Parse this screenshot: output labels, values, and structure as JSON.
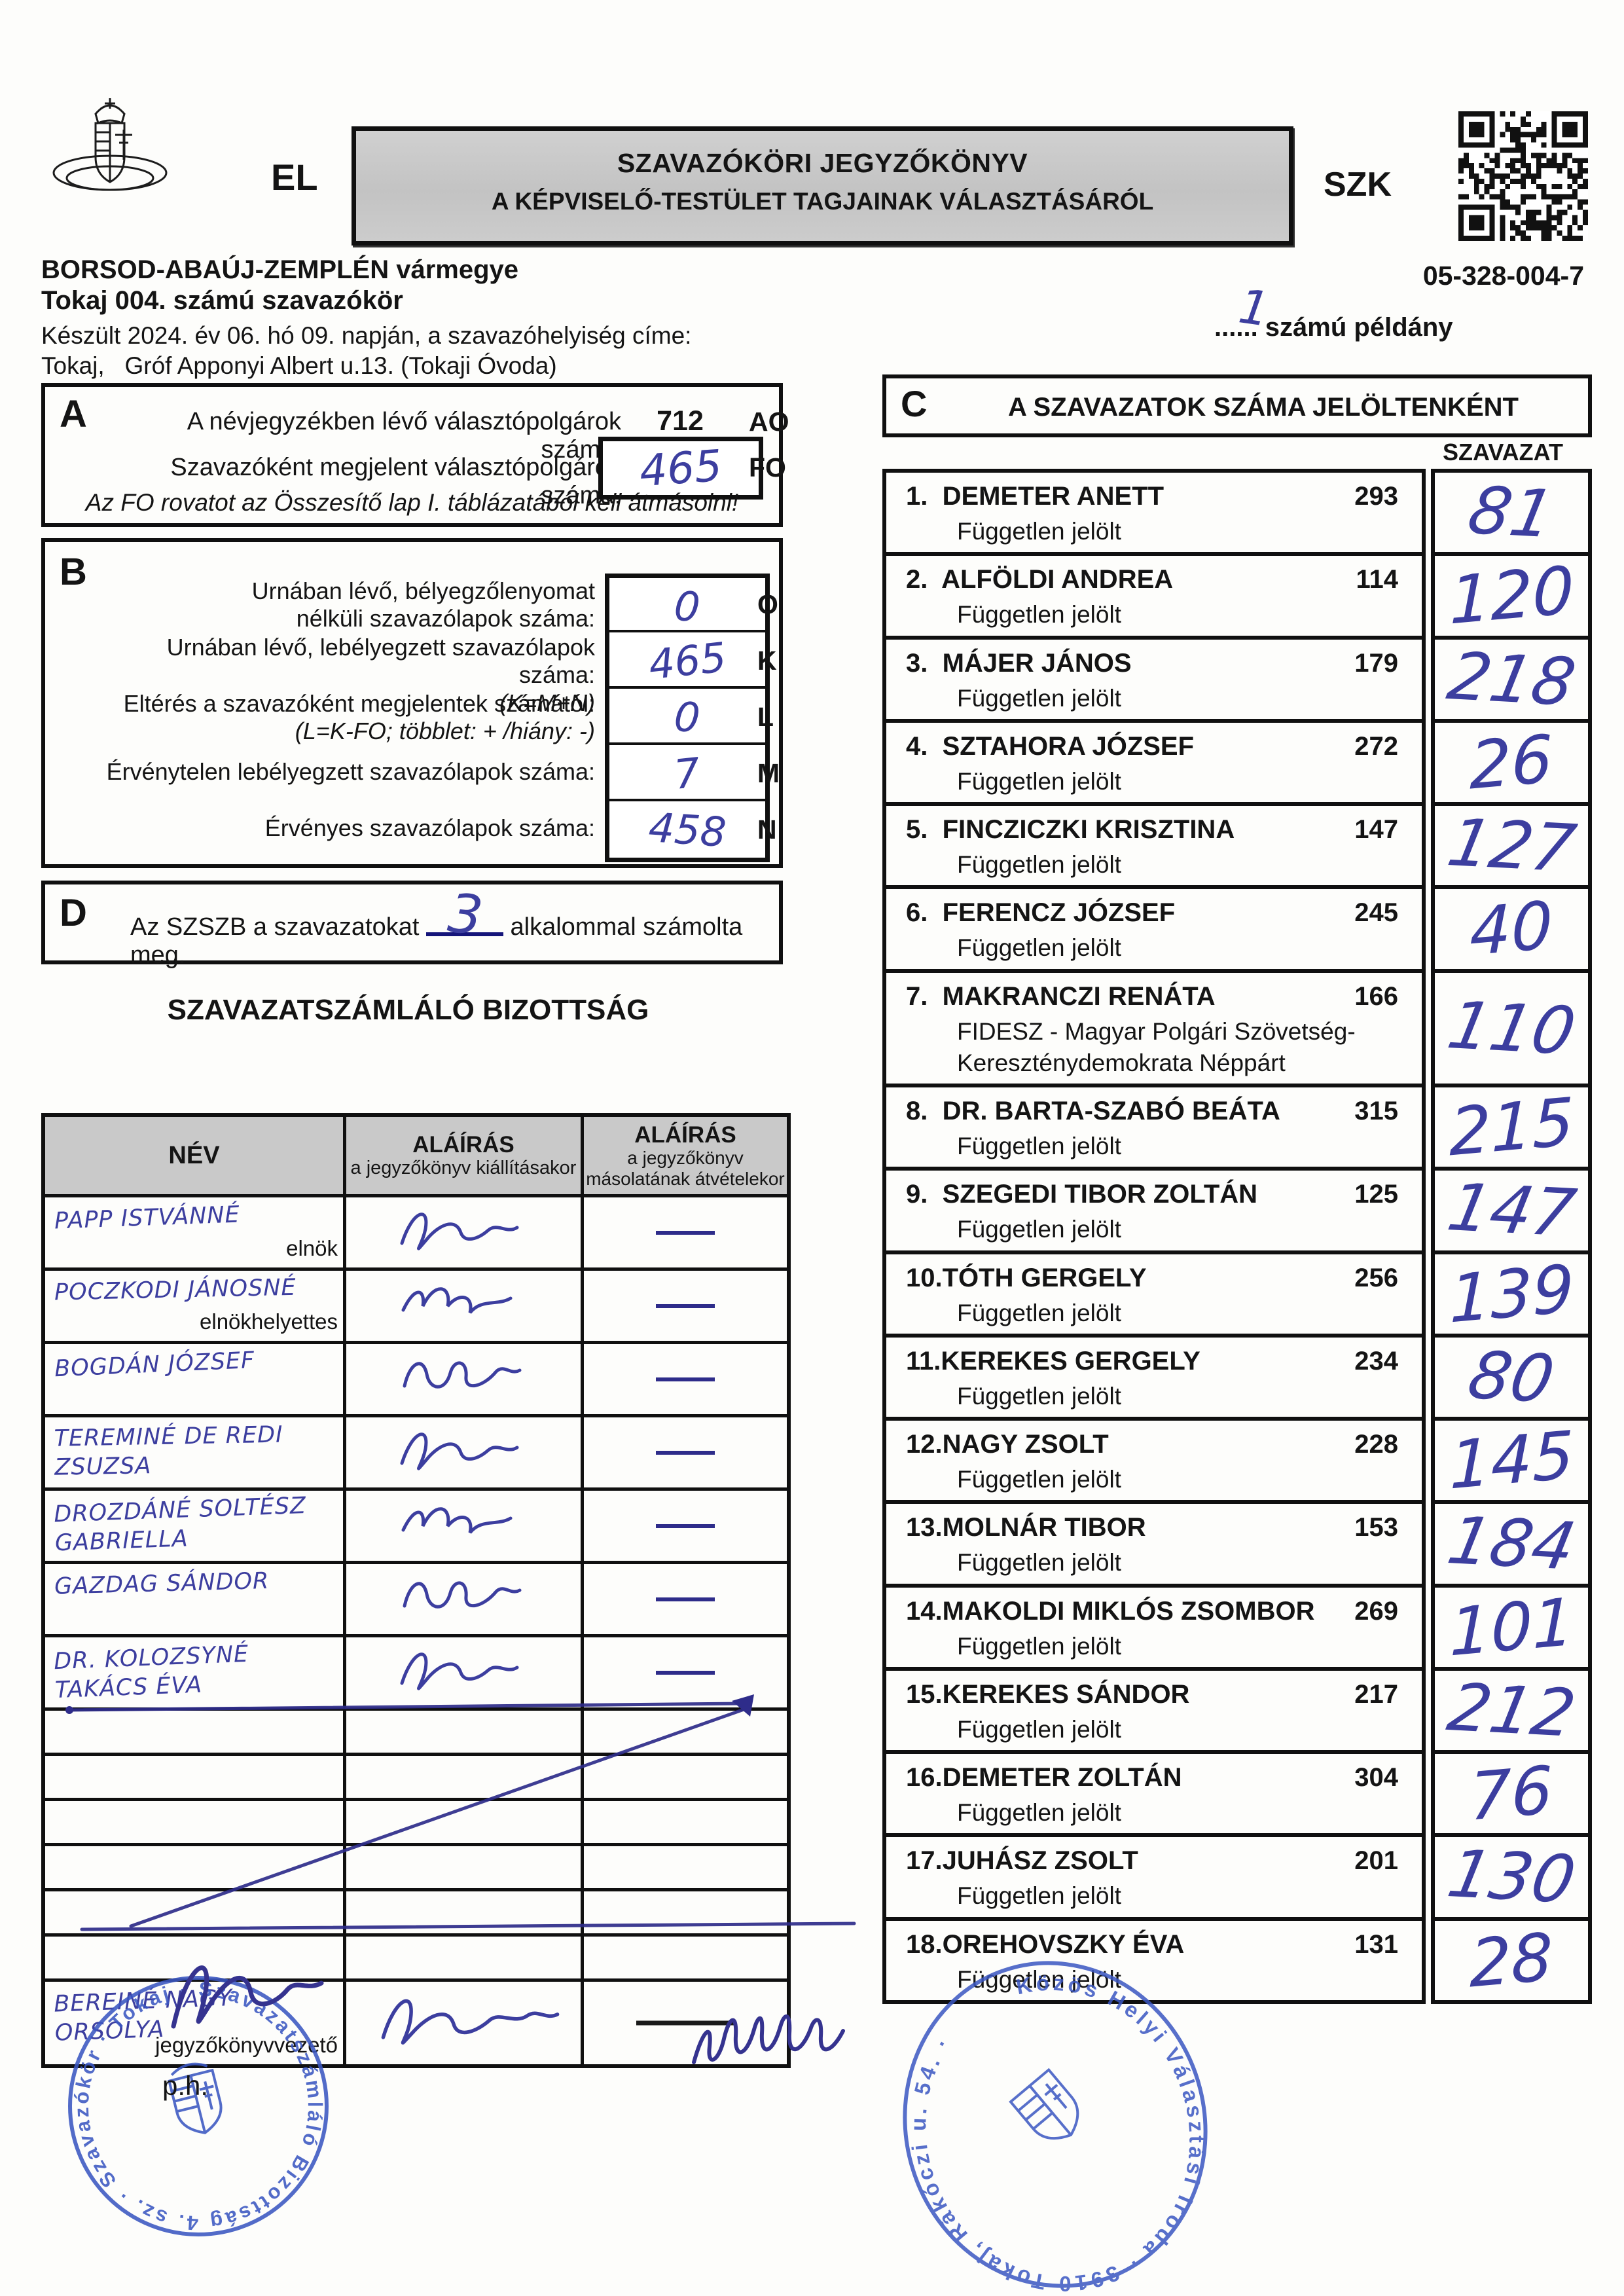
{
  "document": {
    "el_code": "EL",
    "title_line1": "SZAVAZÓKÖRI JEGYZŐKÖNYV",
    "title_line2": "A KÉPVISELŐ-TESTÜLET TAGJAINAK VÁLASZTÁSÁRÓL",
    "szk_code": "SZK",
    "qr_icon": "qr-code-icon",
    "arms_icon": "hungarian-coat-of-arms-icon",
    "county": "BORSOD-ABAÚJ-ZEMPLÉN vármegye",
    "precinct": "Tokaj 004. számú szavazókör",
    "precinct_code": "05-328-004-7",
    "created_line": "Készült 2024. év 06. hó 09. napján, a szavazóhelyiség címe:",
    "address_line": "Tokaj,   Gróf Apponyi Albert u.13. (Tokaji Óvoda)",
    "copy_number_hw": "1",
    "copy_suffix": "...... számú példány"
  },
  "section_a": {
    "letter": "A",
    "row1_label": "A névjegyzékben lévő választópolgárok száma:",
    "row1_value": "712",
    "row1_code": "AO",
    "row2_label": "Szavazóként megjelent választópolgárok száma:",
    "row2_value_hw": "465",
    "row2_code": "FO",
    "note": "Az FO rovatot az Összesítő lap I. táblázatából kell átmásolni!"
  },
  "section_b": {
    "letter": "B",
    "rows": [
      {
        "label": "Urnában lévő, bélyegzőlenyomat",
        "label2": "nélküli szavazólapok száma:",
        "sub": "",
        "code": "O",
        "value_hw": "0"
      },
      {
        "label": "Urnában lévő, lebélyegzett szavazólapok száma:",
        "label2": "",
        "sub": "(K=M+N)",
        "code": "K",
        "value_hw": "465"
      },
      {
        "label": "Eltérés a szavazóként megjelentek számától:",
        "label2": "",
        "sub": "(L=K-FO; többlet: + /hiány: -)",
        "code": "L",
        "value_hw": "0"
      },
      {
        "label": "Érvénytelen lebélyegzett szavazólapok száma:",
        "label2": "",
        "sub": "",
        "code": "M",
        "value_hw": "7"
      },
      {
        "label": "Érvényes szavazólapok száma:",
        "label2": "",
        "sub": "",
        "code": "N",
        "value_hw": "458"
      }
    ]
  },
  "section_d": {
    "letter": "D",
    "text_start": "Az SZSZB a szavazatokat",
    "count_hw": "3",
    "text_end": "alkalommal számolta meg."
  },
  "committee": {
    "title": "SZAVAZATSZÁMLÁLÓ BIZOTTSÁG",
    "header": {
      "col_name": "NÉV",
      "col_sign1a": "ALÁÍRÁS",
      "col_sign1b": "a jegyzőkönyv kiállításakor",
      "col_sign2a": "ALÁÍRÁS",
      "col_sign2b": "a jegyzőkönyv",
      "col_sign2c": "másolatának átvételekor"
    },
    "members": [
      {
        "name_hw": "PAPP ISTVÁNNÉ",
        "role": "elnök"
      },
      {
        "name_hw": "POCZKODI JÁNOSNÉ",
        "role": "elnökhelyettes"
      },
      {
        "name_hw": "BOGDÁN JÓZSEF",
        "role": ""
      },
      {
        "name_hw": "TEREMINÉ DE REDI ZSUZSA",
        "role": ""
      },
      {
        "name_hw": "DROZDÁNÉ SOLTÉSZ GABRIELLA",
        "role": ""
      },
      {
        "name_hw": "GAZDAG SÁNDOR",
        "role": ""
      },
      {
        "name_hw": "DR. KOLOZSYNÉ TAKÁCS ÉVA",
        "role": ""
      }
    ],
    "recorder": {
      "name_hw": "BEREINÉ NAGY ORSOLYA",
      "role": "jegyzőkönyvvezető"
    }
  },
  "section_c": {
    "letter": "C",
    "title": "A SZAVAZATOK SZÁMA JELÖLTENKÉNT",
    "votes_col": "SZAVAZAT",
    "candidates": [
      {
        "num_name": "1.  DEMETER ANETT",
        "registered": "293",
        "party": "Független jelölt",
        "party2": "",
        "votes_hw": "81"
      },
      {
        "num_name": "2.  ALFÖLDI ANDREA",
        "registered": "114",
        "party": "Független jelölt",
        "party2": "",
        "votes_hw": "120"
      },
      {
        "num_name": "3.  MÁJER JÁNOS",
        "registered": "179",
        "party": "Független jelölt",
        "party2": "",
        "votes_hw": "218"
      },
      {
        "num_name": "4.  SZTAHORA JÓZSEF",
        "registered": "272",
        "party": "Független jelölt",
        "party2": "",
        "votes_hw": "26"
      },
      {
        "num_name": "5.  FINCZICZKI KRISZTINA",
        "registered": "147",
        "party": "Független jelölt",
        "party2": "",
        "votes_hw": "127"
      },
      {
        "num_name": "6.  FERENCZ JÓZSEF",
        "registered": "245",
        "party": "Független jelölt",
        "party2": "",
        "votes_hw": "40"
      },
      {
        "num_name": "7.  MAKRANCZI RENÁTA",
        "registered": "166",
        "party": "FIDESZ - Magyar Polgári Szövetség-",
        "party2": "Kereszténydemokrata Néppárt",
        "votes_hw": "110"
      },
      {
        "num_name": "8.  DR. BARTA-SZABÓ BEÁTA",
        "registered": "315",
        "party": "Független jelölt",
        "party2": "",
        "votes_hw": "215"
      },
      {
        "num_name": "9.  SZEGEDI TIBOR ZOLTÁN",
        "registered": "125",
        "party": "Független jelölt",
        "party2": "",
        "votes_hw": "147"
      },
      {
        "num_name": "10.TÓTH GERGELY",
        "registered": "256",
        "party": "Független jelölt",
        "party2": "",
        "votes_hw": "139"
      },
      {
        "num_name": "11.KEREKES GERGELY",
        "registered": "234",
        "party": "Független jelölt",
        "party2": "",
        "votes_hw": "80"
      },
      {
        "num_name": "12.NAGY ZSOLT",
        "registered": "228",
        "party": "Független jelölt",
        "party2": "",
        "votes_hw": "145"
      },
      {
        "num_name": "13.MOLNÁR TIBOR",
        "registered": "153",
        "party": "Független jelölt",
        "party2": "",
        "votes_hw": "184"
      },
      {
        "num_name": "14.MAKOLDI MIKLÓS ZSOMBOR",
        "registered": "269",
        "party": "Független jelölt",
        "party2": "",
        "votes_hw": "101"
      },
      {
        "num_name": "15.KEREKES SÁNDOR",
        "registered": "217",
        "party": "Független jelölt",
        "party2": "",
        "votes_hw": "212"
      },
      {
        "num_name": "16.DEMETER ZOLTÁN",
        "registered": "304",
        "party": "Független jelölt",
        "party2": "",
        "votes_hw": "76"
      },
      {
        "num_name": "17.JUHÁSZ ZSOLT",
        "registered": "201",
        "party": "Független jelölt",
        "party2": "",
        "votes_hw": "130"
      },
      {
        "num_name": "18.OREHOVSZKY ÉVA",
        "registered": "131",
        "party": "Független jelölt",
        "party2": "",
        "votes_hw": "28"
      }
    ]
  },
  "stamps": {
    "ph_label": "p.h.",
    "round_stamp_text": "Szavazatszámláló Bizottság 4. sz. · Szavazókör · Tokaj ·",
    "oval_stamp_text": "Közös Helyi Választási Iroda · 3910 Tokaj, Rákóczi u. 54. ·"
  },
  "colors": {
    "ink_blue": "#3c3e9f",
    "stamp_blue": "#3b57c2",
    "print_black": "#141414"
  }
}
